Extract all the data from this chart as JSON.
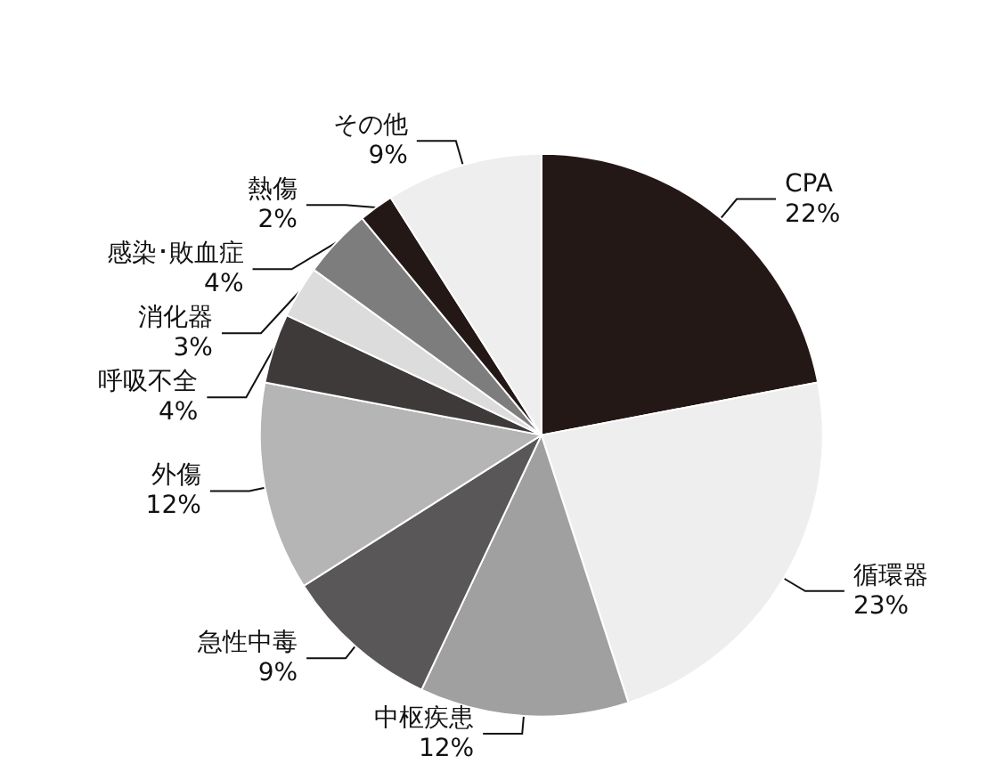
{
  "chart_data": {
    "type": "pie",
    "categories": [
      "CPA",
      "循環器",
      "中枢疾患",
      "急性中毒",
      "外傷",
      "呼吸不全",
      "消化器",
      "感染･敗血症",
      "熱傷",
      "その他"
    ],
    "values": [
      22,
      23,
      12,
      9,
      12,
      4,
      3,
      4,
      2,
      9
    ],
    "value_labels": [
      "22%",
      "23%",
      "12%",
      "9%",
      "12%",
      "4%",
      "3%",
      "4%",
      "2%",
      "9%"
    ],
    "colors": [
      "#231815",
      "#eeeeef",
      "#a0a0a0",
      "#595757",
      "#b5b5b6",
      "#3e3a39",
      "#dcdcdd",
      "#7d7d7d",
      "#231815",
      "#eeeeef"
    ],
    "legend": false
  }
}
